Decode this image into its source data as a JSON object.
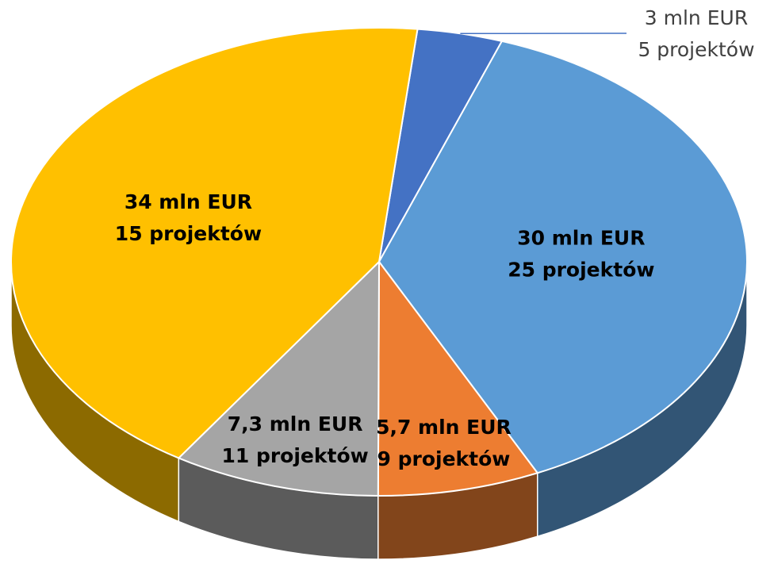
{
  "chart_data": {
    "type": "pie",
    "three_d": true,
    "values": [
      3,
      30,
      5.7,
      7.3,
      34
    ],
    "value_labels": [
      "3 mln EUR",
      "30 mln EUR",
      "5,7 mln EUR",
      "7,3 mln EUR",
      "34 mln EUR"
    ],
    "projects": [
      5,
      25,
      9,
      11,
      15
    ],
    "project_labels": [
      "5 projektów",
      "25 projektów",
      "9 projektów",
      "11 projektów",
      "15 projektów"
    ],
    "colors": [
      "#4472c4",
      "#5b9bd5",
      "#ed7d31",
      "#a5a5a5",
      "#ffc000"
    ]
  }
}
